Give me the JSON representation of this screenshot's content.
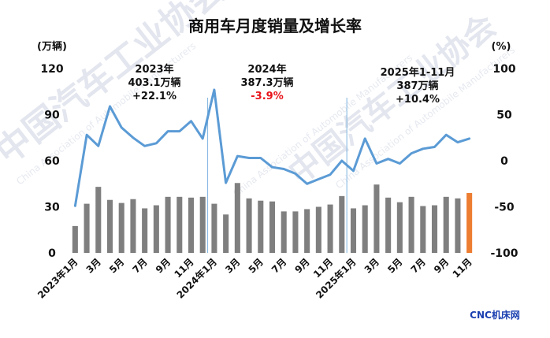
{
  "chart_data": {
    "type": "bar+line",
    "title": "商用车月度销量及增长率",
    "left_unit": "(万辆)",
    "right_unit": "(%)",
    "left_ticks": [
      "0",
      "30",
      "60",
      "90",
      "120"
    ],
    "right_ticks": [
      "-100",
      "-50",
      "0",
      "50",
      "100"
    ],
    "ylim_left": [
      0,
      120
    ],
    "ylim_right": [
      -100,
      100
    ],
    "x_tick_labels": [
      "2023年1月",
      "3月",
      "5月",
      "7月",
      "9月",
      "11月",
      "2024年1月",
      "3月",
      "5月",
      "7月",
      "9月",
      "11月",
      "2025年1月",
      "3月",
      "5月",
      "7月",
      "9月",
      "11月"
    ],
    "x_tick_indices": [
      0,
      2,
      4,
      6,
      8,
      10,
      12,
      14,
      16,
      18,
      20,
      22,
      24,
      26,
      28,
      30,
      32,
      34
    ],
    "bars": {
      "name": "销量",
      "color_default": "#7f7f7f",
      "color_highlight": "#ed7d31",
      "highlight_index": 34,
      "values": [
        17.5,
        32,
        43,
        34.5,
        32.5,
        35,
        29,
        31,
        36.5,
        36.5,
        36,
        36.5,
        32,
        25,
        45.5,
        35.5,
        34,
        33.5,
        27,
        27,
        28.5,
        30,
        31.5,
        37,
        29,
        31,
        44.5,
        36,
        33,
        36.5,
        30.5,
        31,
        36.5,
        35.5,
        39
      ]
    },
    "line": {
      "name": "增长率",
      "color": "#5b9bd5",
      "values": [
        -49,
        28,
        16,
        59,
        36,
        25,
        16,
        19,
        32,
        32,
        43,
        24,
        77,
        -24,
        5,
        3,
        3,
        -7,
        -9,
        -14,
        -25,
        -20,
        -15,
        0,
        -11,
        24,
        -3,
        2,
        -3,
        8,
        13,
        15,
        28,
        20,
        24
      ]
    },
    "annotations": [
      {
        "year": "2023年",
        "total": "403.1万辆",
        "growth": "+22.1%",
        "growth_color": "#111111"
      },
      {
        "year": "2024年",
        "total": "387.3万辆",
        "growth": "-3.9%",
        "growth_color": "#e8141b"
      },
      {
        "year": "2025年1-11月",
        "total": "387万辆",
        "growth": "+10.4%",
        "growth_color": "#111111"
      }
    ],
    "watermark": {
      "text_cn_1": "中国汽车工业协会",
      "text_cn_2": "中国汽车工业协会",
      "text_en_1": "China Association of Automobile Manufacturers",
      "text_en_2": "China Association of Automobile Manufacturers",
      "text_en_3": "China Association of Automobile Manufacturers"
    },
    "source": "CNC机床网"
  }
}
